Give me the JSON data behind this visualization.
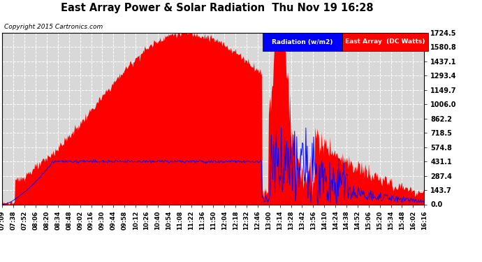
{
  "title": "East Array Power & Solar Radiation  Thu Nov 19 16:28",
  "copyright_text": "Copyright 2015 Cartronics.com",
  "y_max": 1724.5,
  "y_min": 0.0,
  "y_ticks": [
    0.0,
    143.7,
    287.4,
    431.1,
    574.8,
    718.5,
    862.2,
    1006.0,
    1149.7,
    1293.4,
    1437.1,
    1580.8,
    1724.5
  ],
  "bg_color": "#ffffff",
  "plot_bg_color": "#d8d8d8",
  "grid_color": "#ffffff",
  "radiation_fill_color": "#ff0000",
  "power_line_color": "#0000ff",
  "n_points": 600,
  "peak_radiation": 1724.5,
  "peak_power": 431.1
}
